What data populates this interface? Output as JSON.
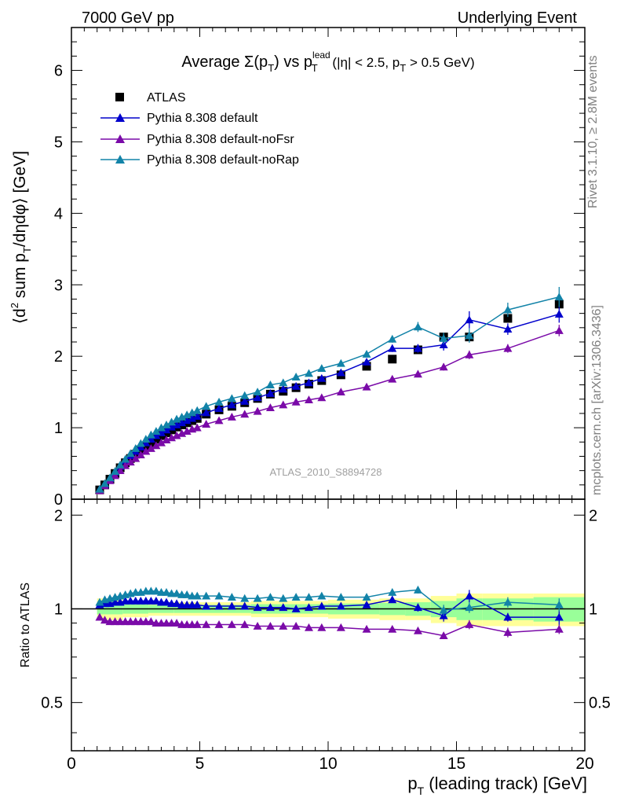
{
  "header": {
    "left": "7000 GeV pp",
    "right": "Underlying Event"
  },
  "side_labels": {
    "rivet": "Rivet 3.1.10, ≥ 2.8M events",
    "mcplots": "mcplots.cern.ch [arXiv:1306.3436]"
  },
  "analysis_label": "ATLAS_2010_S8894728",
  "colors": {
    "data": "#000000",
    "default": "#0000cc",
    "noFsr": "#7a0aa8",
    "noRap": "#1283a8",
    "band_inner": "#99ff99",
    "band_outer": "#ffff99"
  },
  "chart_data": [
    {
      "type": "scatter",
      "title": "Average Σ(p_T) vs p_T^lead (|η| < 2.5, p_T > 0.5 GeV)",
      "title_parts": {
        "prefix": "Average ",
        "sigma": "Σ(p",
        "sub_t": "T",
        "mid": ") vs p",
        "lead": "lead",
        "cut1": " (|η| < 2.5, p",
        "cut2": " > 0.5 GeV)"
      },
      "ylabel": "⟨d² sum p_T/dηdφ⟩ [GeV]",
      "ylabel_parts": {
        "a": "⟨d",
        "sup": "2",
        "b": " sum p",
        "sub": "T",
        "c": "/dηdφ⟩ [GeV]"
      },
      "xlim": [
        0,
        20
      ],
      "ylim": [
        0,
        6.6
      ],
      "yticks": [
        "0",
        "1",
        "2",
        "3",
        "4",
        "5",
        "6"
      ],
      "legend": [
        "ATLAS",
        "Pythia 8.308 default",
        "Pythia 8.308 default-noFsr",
        "Pythia 8.308 default-noRap"
      ],
      "legend_position": "top-left",
      "x": [
        1.1,
        1.3,
        1.5,
        1.7,
        1.9,
        2.1,
        2.3,
        2.5,
        2.7,
        2.9,
        3.1,
        3.3,
        3.5,
        3.7,
        3.9,
        4.1,
        4.3,
        4.5,
        4.7,
        4.9,
        5.25,
        5.75,
        6.25,
        6.75,
        7.25,
        7.75,
        8.25,
        8.75,
        9.25,
        9.75,
        10.5,
        11.5,
        12.5,
        13.5,
        14.5,
        15.5,
        17.0,
        19.0
      ],
      "series": [
        {
          "name": "ATLAS",
          "marker": "square",
          "values": [
            0.13,
            0.2,
            0.28,
            0.36,
            0.44,
            0.51,
            0.57,
            0.63,
            0.69,
            0.74,
            0.79,
            0.84,
            0.89,
            0.93,
            0.97,
            1.01,
            1.04,
            1.07,
            1.1,
            1.13,
            1.19,
            1.25,
            1.3,
            1.35,
            1.41,
            1.47,
            1.51,
            1.56,
            1.61,
            1.66,
            1.74,
            1.86,
            1.96,
            2.09,
            2.27,
            2.27,
            2.53,
            2.73
          ]
        },
        {
          "name": "Pythia 8.308 default",
          "marker": "triangle",
          "values": [
            0.14,
            0.21,
            0.29,
            0.38,
            0.46,
            0.54,
            0.61,
            0.67,
            0.73,
            0.79,
            0.84,
            0.89,
            0.93,
            0.97,
            1.01,
            1.04,
            1.07,
            1.1,
            1.13,
            1.16,
            1.21,
            1.27,
            1.32,
            1.37,
            1.42,
            1.48,
            1.54,
            1.58,
            1.63,
            1.69,
            1.77,
            1.92,
            2.11,
            2.11,
            2.16,
            2.51,
            2.38,
            2.59
          ],
          "errors": [
            0.01,
            0.01,
            0.01,
            0.01,
            0.01,
            0.01,
            0.01,
            0.01,
            0.01,
            0.01,
            0.01,
            0.01,
            0.01,
            0.01,
            0.01,
            0.01,
            0.01,
            0.01,
            0.01,
            0.01,
            0.01,
            0.01,
            0.01,
            0.02,
            0.02,
            0.02,
            0.02,
            0.02,
            0.02,
            0.03,
            0.03,
            0.04,
            0.05,
            0.06,
            0.08,
            0.12,
            0.08,
            0.12
          ]
        },
        {
          "name": "Pythia 8.308 default-noFsr",
          "marker": "triangle",
          "values": [
            0.12,
            0.19,
            0.26,
            0.33,
            0.4,
            0.47,
            0.52,
            0.57,
            0.62,
            0.67,
            0.71,
            0.75,
            0.79,
            0.83,
            0.86,
            0.89,
            0.92,
            0.95,
            0.98,
            1.0,
            1.05,
            1.1,
            1.15,
            1.19,
            1.23,
            1.28,
            1.32,
            1.36,
            1.39,
            1.42,
            1.5,
            1.57,
            1.68,
            1.75,
            1.85,
            2.02,
            2.11,
            2.36
          ],
          "errors": [
            0.01,
            0.01,
            0.01,
            0.01,
            0.01,
            0.01,
            0.01,
            0.01,
            0.01,
            0.01,
            0.01,
            0.01,
            0.01,
            0.01,
            0.01,
            0.01,
            0.01,
            0.01,
            0.01,
            0.01,
            0.01,
            0.01,
            0.01,
            0.02,
            0.02,
            0.02,
            0.02,
            0.02,
            0.02,
            0.02,
            0.03,
            0.03,
            0.04,
            0.04,
            0.05,
            0.06,
            0.06,
            0.08
          ]
        },
        {
          "name": "Pythia 8.308 default-noRap",
          "marker": "triangle",
          "values": [
            0.14,
            0.22,
            0.3,
            0.39,
            0.48,
            0.56,
            0.64,
            0.71,
            0.78,
            0.84,
            0.9,
            0.95,
            1.0,
            1.04,
            1.08,
            1.12,
            1.15,
            1.18,
            1.21,
            1.24,
            1.3,
            1.36,
            1.41,
            1.45,
            1.5,
            1.6,
            1.63,
            1.71,
            1.76,
            1.83,
            1.9,
            2.03,
            2.24,
            2.41,
            2.25,
            2.29,
            2.65,
            2.83
          ],
          "errors": [
            0.01,
            0.01,
            0.01,
            0.01,
            0.01,
            0.01,
            0.01,
            0.01,
            0.01,
            0.01,
            0.01,
            0.01,
            0.01,
            0.01,
            0.01,
            0.01,
            0.01,
            0.01,
            0.01,
            0.01,
            0.01,
            0.01,
            0.01,
            0.02,
            0.02,
            0.02,
            0.02,
            0.02,
            0.02,
            0.03,
            0.03,
            0.04,
            0.05,
            0.07,
            0.08,
            0.1,
            0.1,
            0.14
          ]
        }
      ]
    },
    {
      "type": "scatter",
      "title": "",
      "ylabel": "Ratio to ATLAS",
      "xlabel": "p_T (leading track) [GeV]",
      "xlabel_parts": {
        "a": "p",
        "sub": "T",
        "b": " (leading track) [GeV]"
      },
      "xlim": [
        0,
        20
      ],
      "ylim": [
        0.35,
        2.25
      ],
      "xticks": [
        "0",
        "5",
        "10",
        "15",
        "20"
      ],
      "yticks": [
        "0.5",
        "1",
        "2"
      ],
      "reference_line": 1,
      "uncertainty_band": {
        "x_edges": [
          1.0,
          2.0,
          3.0,
          4.0,
          5.0,
          7.0,
          10.0,
          12.0,
          13.0,
          14.0,
          15.0,
          16.0,
          18.0,
          20.0
        ],
        "inner": [
          0.04,
          0.035,
          0.03,
          0.03,
          0.03,
          0.035,
          0.04,
          0.045,
          0.05,
          0.06,
          0.08,
          0.08,
          0.09
        ],
        "outer": [
          0.08,
          0.06,
          0.05,
          0.05,
          0.05,
          0.06,
          0.07,
          0.08,
          0.08,
          0.1,
          0.12,
          0.12,
          0.12
        ]
      },
      "series": [
        {
          "name": "Pythia 8.308 default",
          "values": [
            1.03,
            1.04,
            1.04,
            1.05,
            1.05,
            1.06,
            1.06,
            1.06,
            1.06,
            1.06,
            1.06,
            1.06,
            1.05,
            1.05,
            1.04,
            1.04,
            1.03,
            1.03,
            1.03,
            1.03,
            1.02,
            1.02,
            1.02,
            1.02,
            1.01,
            1.01,
            1.01,
            1.0,
            1.01,
            1.02,
            1.02,
            1.03,
            1.07,
            1.01,
            0.95,
            1.1,
            0.94,
            0.94
          ],
          "errors": [
            0.01,
            0.01,
            0.01,
            0.01,
            0.01,
            0.01,
            0.01,
            0.01,
            0.01,
            0.01,
            0.01,
            0.01,
            0.01,
            0.01,
            0.01,
            0.01,
            0.01,
            0.01,
            0.01,
            0.01,
            0.01,
            0.01,
            0.01,
            0.01,
            0.01,
            0.01,
            0.01,
            0.01,
            0.01,
            0.01,
            0.02,
            0.02,
            0.02,
            0.03,
            0.04,
            0.05,
            0.03,
            0.05
          ]
        },
        {
          "name": "Pythia 8.308 default-noFsr",
          "values": [
            0.94,
            0.92,
            0.91,
            0.91,
            0.91,
            0.91,
            0.91,
            0.91,
            0.91,
            0.91,
            0.91,
            0.9,
            0.9,
            0.9,
            0.9,
            0.9,
            0.89,
            0.89,
            0.89,
            0.89,
            0.89,
            0.89,
            0.89,
            0.89,
            0.88,
            0.88,
            0.88,
            0.88,
            0.87,
            0.87,
            0.87,
            0.86,
            0.86,
            0.85,
            0.82,
            0.89,
            0.84,
            0.86
          ],
          "errors": [
            0.01,
            0.01,
            0.01,
            0.01,
            0.01,
            0.01,
            0.01,
            0.01,
            0.01,
            0.01,
            0.01,
            0.01,
            0.01,
            0.01,
            0.01,
            0.01,
            0.01,
            0.01,
            0.01,
            0.01,
            0.01,
            0.01,
            0.01,
            0.01,
            0.01,
            0.01,
            0.01,
            0.01,
            0.01,
            0.01,
            0.01,
            0.01,
            0.02,
            0.02,
            0.02,
            0.03,
            0.03,
            0.03
          ]
        },
        {
          "name": "Pythia 8.308 default-noRap",
          "values": [
            1.05,
            1.07,
            1.08,
            1.09,
            1.1,
            1.11,
            1.12,
            1.13,
            1.13,
            1.14,
            1.14,
            1.14,
            1.13,
            1.13,
            1.12,
            1.12,
            1.11,
            1.11,
            1.1,
            1.1,
            1.1,
            1.1,
            1.09,
            1.08,
            1.08,
            1.09,
            1.08,
            1.09,
            1.09,
            1.1,
            1.09,
            1.09,
            1.13,
            1.15,
            0.99,
            1.01,
            1.05,
            1.03
          ],
          "errors": [
            0.01,
            0.01,
            0.01,
            0.01,
            0.01,
            0.01,
            0.01,
            0.01,
            0.01,
            0.01,
            0.01,
            0.01,
            0.01,
            0.01,
            0.01,
            0.01,
            0.01,
            0.01,
            0.01,
            0.01,
            0.01,
            0.01,
            0.01,
            0.01,
            0.01,
            0.01,
            0.01,
            0.01,
            0.01,
            0.01,
            0.02,
            0.02,
            0.03,
            0.03,
            0.04,
            0.04,
            0.04,
            0.05
          ]
        }
      ]
    }
  ]
}
